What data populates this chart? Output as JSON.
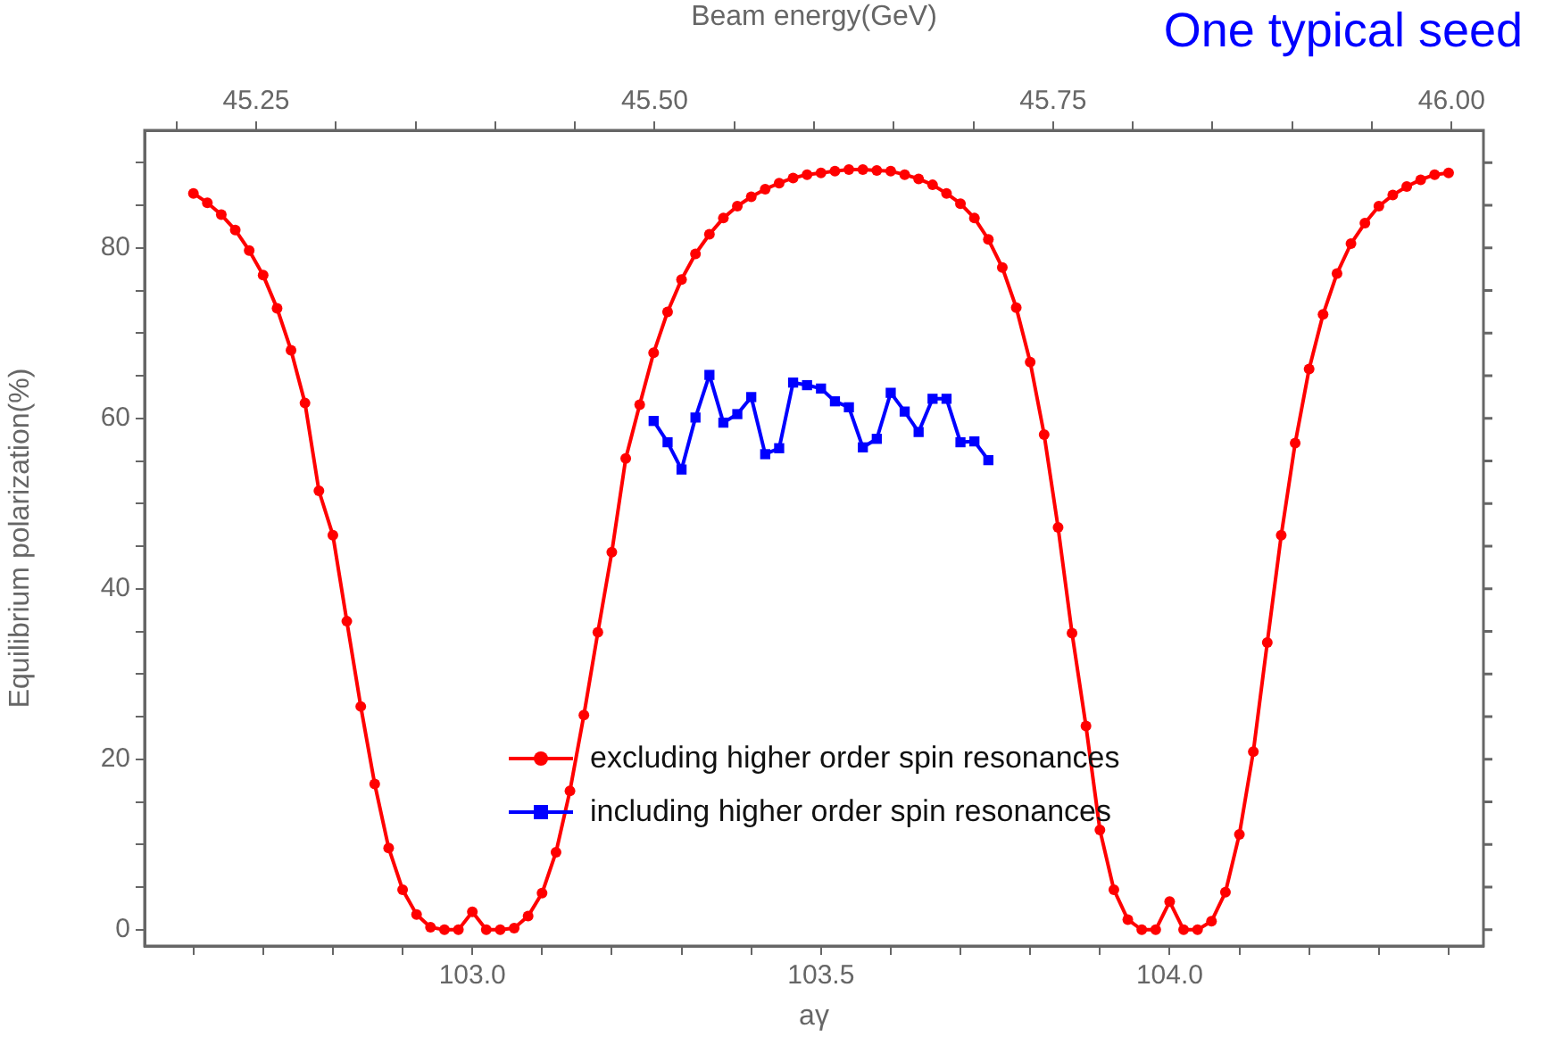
{
  "chart_data": {
    "type": "line",
    "title": "One typical seed",
    "xlabel": "aγ",
    "x2label": "Beam energy(GeV)",
    "ylabel": "Equilibrium polarization(%)",
    "xlim": [
      102.53,
      104.45
    ],
    "xticks": [
      {
        "value": 102.6,
        "label": null
      },
      {
        "value": 102.7,
        "label": null
      },
      {
        "value": 102.8,
        "label": null
      },
      {
        "value": 102.9,
        "label": null
      },
      {
        "value": 103,
        "label": "103.0"
      },
      {
        "value": 103.1,
        "label": null
      },
      {
        "value": 103.2,
        "label": null
      },
      {
        "value": 103.3,
        "label": null
      },
      {
        "value": 103.4,
        "label": null
      },
      {
        "value": 103.5,
        "label": "103.5"
      },
      {
        "value": 103.6,
        "label": null
      },
      {
        "value": 103.7,
        "label": null
      },
      {
        "value": 103.8,
        "label": null
      },
      {
        "value": 103.9,
        "label": null
      },
      {
        "value": 104,
        "label": "104.0"
      },
      {
        "value": 104.1,
        "label": null
      },
      {
        "value": 104.2,
        "label": null
      },
      {
        "value": 104.3,
        "label": null
      },
      {
        "value": 104.4,
        "label": null
      }
    ],
    "x2lim": [
      45.18,
      46.02
    ],
    "x2ticks": [
      {
        "value": 45.2,
        "label": null
      },
      {
        "value": 45.25,
        "label": "45.25"
      },
      {
        "value": 45.3,
        "label": null
      },
      {
        "value": 45.35,
        "label": null
      },
      {
        "value": 45.4,
        "label": null
      },
      {
        "value": 45.45,
        "label": null
      },
      {
        "value": 45.5,
        "label": "45.50"
      },
      {
        "value": 45.55,
        "label": null
      },
      {
        "value": 45.6,
        "label": null
      },
      {
        "value": 45.65,
        "label": null
      },
      {
        "value": 45.7,
        "label": null
      },
      {
        "value": 45.75,
        "label": "45.75"
      },
      {
        "value": 45.8,
        "label": null
      },
      {
        "value": 45.85,
        "label": null
      },
      {
        "value": 45.9,
        "label": null
      },
      {
        "value": 45.95,
        "label": null
      },
      {
        "value": 46,
        "label": "46.00"
      }
    ],
    "ylim": [
      -1.9,
      93.8
    ],
    "yticks": [
      0,
      {
        "value": 5,
        "label": null
      },
      {
        "value": 10,
        "label": null
      },
      {
        "value": 15,
        "label": null
      },
      20,
      {
        "value": 25,
        "label": null
      },
      {
        "value": 30,
        "label": null
      },
      {
        "value": 35,
        "label": null
      },
      40,
      {
        "value": 45,
        "label": null
      },
      {
        "value": 50,
        "label": null
      },
      {
        "value": 55,
        "label": null
      },
      60,
      {
        "value": 65,
        "label": null
      },
      {
        "value": 70,
        "label": null
      },
      {
        "value": 75,
        "label": null
      },
      80,
      {
        "value": 85,
        "label": null
      },
      {
        "value": 90,
        "label": null
      }
    ],
    "grid": false,
    "legend": "bottom",
    "line_style": "solid",
    "x": [
      102.6,
      102.62,
      102.64,
      102.66,
      102.68,
      102.7,
      102.72,
      102.74,
      102.76,
      102.78,
      102.8,
      102.82,
      102.84,
      102.86,
      102.88,
      102.9,
      102.92,
      102.94,
      102.96,
      102.98,
      103,
      103.02,
      103.04,
      103.06,
      103.08,
      103.1,
      103.12,
      103.14,
      103.16,
      103.18,
      103.2,
      103.22,
      103.24,
      103.26,
      103.28,
      103.3,
      103.32,
      103.34,
      103.36,
      103.38,
      103.4,
      103.42,
      103.44,
      103.46,
      103.48,
      103.5,
      103.52,
      103.54,
      103.56,
      103.58,
      103.6,
      103.62,
      103.64,
      103.66,
      103.68,
      103.7,
      103.72,
      103.74,
      103.76,
      103.78,
      103.8,
      103.82,
      103.84,
      103.86,
      103.88,
      103.9,
      103.92,
      103.94,
      103.96,
      103.98,
      104,
      104.02,
      104.04,
      104.06,
      104.08,
      104.1,
      104.12,
      104.14,
      104.16,
      104.18,
      104.2,
      104.22,
      104.24,
      104.26,
      104.28,
      104.3,
      104.32,
      104.34,
      104.36,
      104.38,
      104.4
    ],
    "series": [
      {
        "name": "excluding higher order spin resonances",
        "color": "#ff0000",
        "marker": "circle",
        "values": [
          86.4,
          85.3,
          83.9,
          82.1,
          79.7,
          76.8,
          72.9,
          68.0,
          61.8,
          51.5,
          46.3,
          36.2,
          26.2,
          17.1,
          9.6,
          4.7,
          1.8,
          0.3,
          0,
          0,
          2.1,
          0,
          0,
          0.2,
          1.6,
          4.3,
          9.1,
          16.3,
          25.2,
          34.9,
          44.3,
          55.3,
          61.6,
          67.7,
          72.5,
          76.3,
          79.3,
          81.6,
          83.5,
          84.9,
          86.0,
          86.9,
          87.6,
          88.2,
          88.6,
          88.8,
          89.0,
          89.2,
          89.2,
          89.1,
          89.0,
          88.6,
          88.1,
          87.4,
          86.4,
          85.2,
          83.5,
          81.0,
          77.7,
          73.0,
          66.6,
          58.1,
          47.2,
          34.8,
          23.9,
          11.7,
          4.7,
          1.2,
          0,
          0,
          3.3,
          0,
          0,
          1.0,
          4.4,
          11.2,
          20.9,
          33.7,
          46.3,
          57.1,
          65.8,
          72.2,
          77.0,
          80.5,
          82.9,
          84.9,
          86.2,
          87.2,
          88.0,
          88.6,
          88.8
        ]
      },
      {
        "name": "including higher order spin resonances",
        "color": "#0000ff",
        "marker": "square",
        "x": [
          103.26,
          103.28,
          103.3,
          103.32,
          103.34,
          103.36,
          103.38,
          103.4,
          103.42,
          103.44,
          103.46,
          103.48,
          103.5,
          103.52,
          103.54,
          103.56,
          103.58,
          103.6,
          103.62,
          103.64,
          103.66,
          103.68,
          103.7,
          103.72,
          103.74
        ],
        "values": [
          59.7,
          57.2,
          54.0,
          60.1,
          65.1,
          59.5,
          60.5,
          62.5,
          55.8,
          56.5,
          64.2,
          63.9,
          63.5,
          62.0,
          61.3,
          56.6,
          57.6,
          63.0,
          60.8,
          58.4,
          62.3,
          62.3,
          57.2,
          57.3,
          55.1
        ]
      }
    ]
  }
}
